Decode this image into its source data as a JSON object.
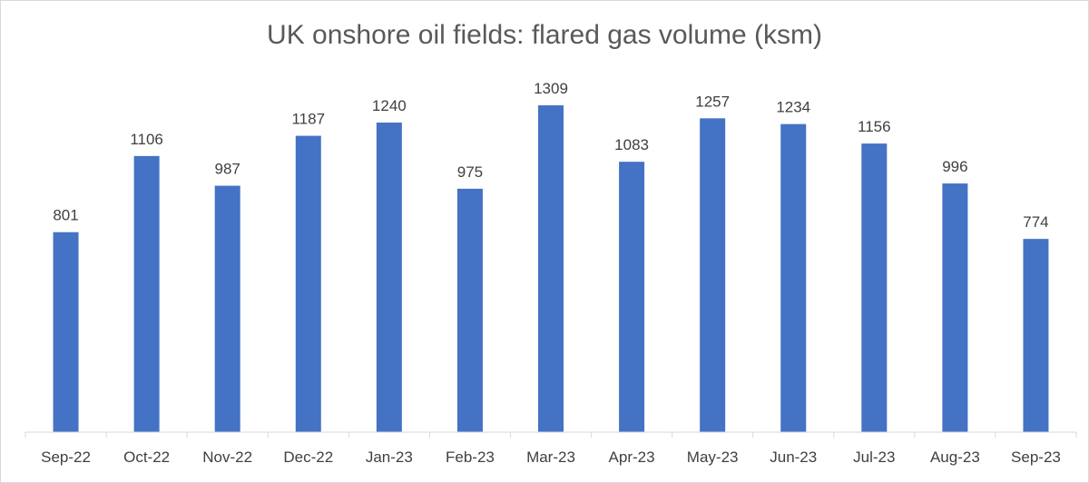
{
  "chart_data": {
    "type": "bar",
    "title": "UK onshore oil fields: flared gas volume (ksm)",
    "categories": [
      "Sep-22",
      "Oct-22",
      "Nov-22",
      "Dec-22",
      "Jan-23",
      "Feb-23",
      "Mar-23",
      "Apr-23",
      "May-23",
      "Jun-23",
      "Jul-23",
      "Aug-23",
      "Sep-23"
    ],
    "values": [
      801,
      1106,
      987,
      1187,
      1240,
      975,
      1309,
      1083,
      1257,
      1234,
      1156,
      996,
      774
    ],
    "xlabel": "",
    "ylabel": "",
    "ylim": [
      0,
      1400
    ],
    "grid": false,
    "legend": "none",
    "data_labels": true,
    "colors": {
      "bar": "#4472C4",
      "axis": "#d9d9d9",
      "text": "#404040",
      "title": "#595959"
    }
  }
}
